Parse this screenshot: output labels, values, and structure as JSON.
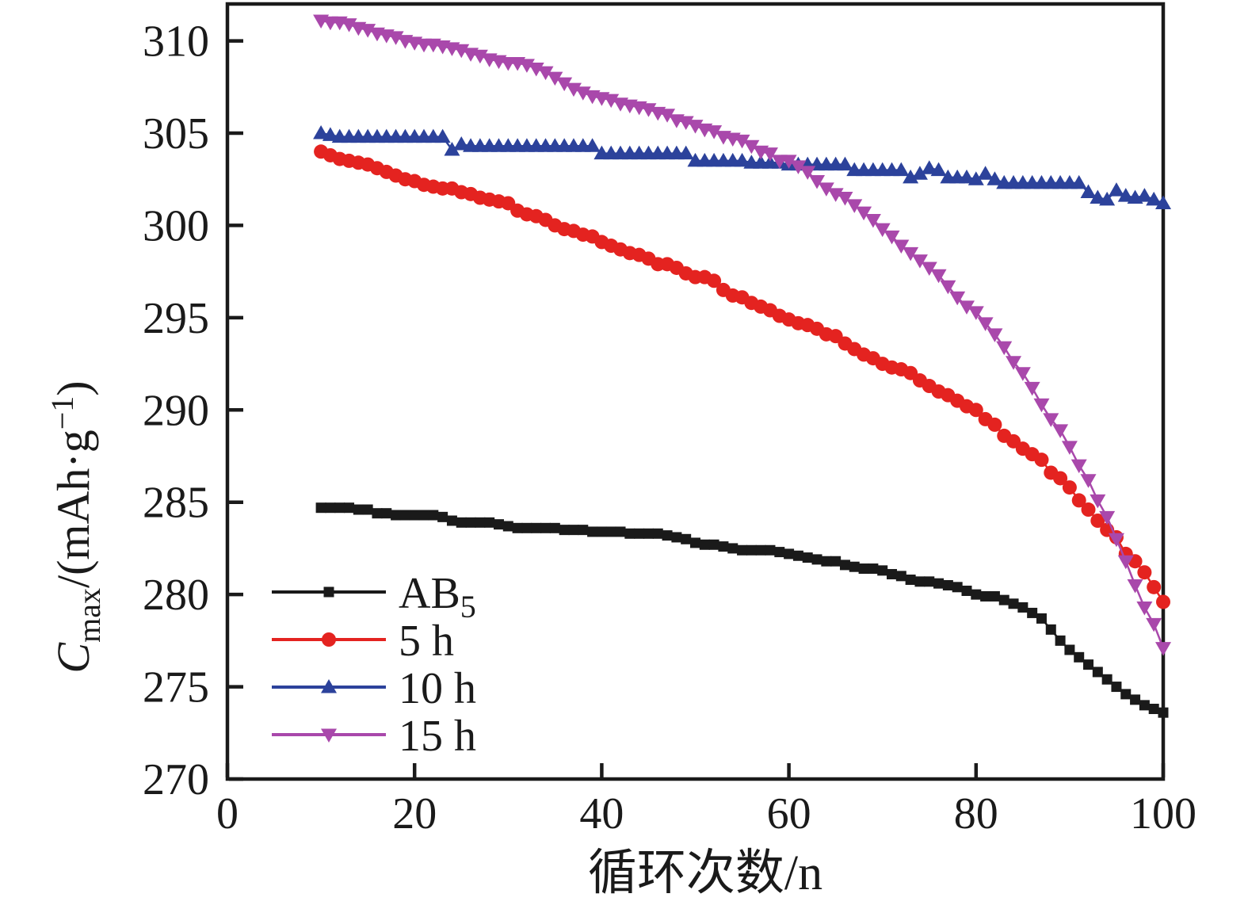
{
  "figure": {
    "background": "#ffffff",
    "axis_color": "#1a1a1a"
  },
  "chart_data": {
    "type": "line",
    "title": "",
    "xlabel": "循环次数/n",
    "ylabel_plain": "Cmax/(mAh·g−1)",
    "ylabel_parts": [
      {
        "t": "C",
        "style": "italic"
      },
      {
        "t": "max",
        "style": "sub"
      },
      {
        "t": "/(mAh·g",
        "style": "normal"
      },
      {
        "t": "−1",
        "style": "sup"
      },
      {
        "t": ")",
        "style": "normal"
      }
    ],
    "xlim": [
      0,
      100
    ],
    "ylim": [
      270,
      312
    ],
    "x_ticks": [
      0,
      20,
      40,
      60,
      80,
      100
    ],
    "y_ticks": [
      270,
      275,
      280,
      285,
      290,
      295,
      300,
      305,
      310
    ],
    "grid": false,
    "legend_position": "inside-lower-left",
    "x": [
      10,
      11,
      12,
      13,
      14,
      15,
      16,
      17,
      18,
      19,
      20,
      21,
      22,
      23,
      24,
      25,
      26,
      27,
      28,
      29,
      30,
      31,
      32,
      33,
      34,
      35,
      36,
      37,
      38,
      39,
      40,
      41,
      42,
      43,
      44,
      45,
      46,
      47,
      48,
      49,
      50,
      51,
      52,
      53,
      54,
      55,
      56,
      57,
      58,
      59,
      60,
      61,
      62,
      63,
      64,
      65,
      66,
      67,
      68,
      69,
      70,
      71,
      72,
      73,
      74,
      75,
      76,
      77,
      78,
      79,
      80,
      81,
      82,
      83,
      84,
      85,
      86,
      87,
      88,
      89,
      90,
      91,
      92,
      93,
      94,
      95,
      96,
      97,
      98,
      99,
      100
    ],
    "series": [
      {
        "name": "AB5",
        "label": "AB",
        "label_sub": "5",
        "color": "#1a1a1a",
        "marker": "square",
        "values": [
          284.7,
          284.7,
          284.7,
          284.7,
          284.6,
          284.6,
          284.4,
          284.4,
          284.3,
          284.3,
          284.3,
          284.3,
          284.3,
          284.2,
          284.0,
          283.9,
          283.9,
          283.9,
          283.9,
          283.8,
          283.7,
          283.6,
          283.6,
          283.6,
          283.6,
          283.6,
          283.5,
          283.5,
          283.5,
          283.4,
          283.4,
          283.4,
          283.4,
          283.3,
          283.3,
          283.3,
          283.3,
          283.2,
          283.1,
          283.0,
          282.8,
          282.7,
          282.7,
          282.6,
          282.5,
          282.4,
          282.4,
          282.4,
          282.4,
          282.3,
          282.2,
          282.1,
          282.0,
          281.9,
          281.8,
          281.8,
          281.6,
          281.5,
          281.4,
          281.4,
          281.3,
          281.1,
          281.0,
          280.8,
          280.7,
          280.7,
          280.6,
          280.5,
          280.4,
          280.2,
          280.0,
          279.9,
          279.9,
          279.7,
          279.5,
          279.3,
          279.0,
          278.7,
          278.1,
          277.5,
          277.0,
          276.6,
          276.2,
          275.8,
          275.4,
          275.0,
          274.6,
          274.3,
          274.0,
          273.8,
          273.6
        ]
      },
      {
        "name": "5 h",
        "label": "5 h",
        "label_sub": "",
        "color": "#e42320",
        "marker": "circle",
        "values": [
          304.0,
          303.8,
          303.6,
          303.5,
          303.4,
          303.3,
          303.1,
          302.9,
          302.7,
          302.5,
          302.4,
          302.2,
          302.1,
          302.0,
          302.0,
          301.8,
          301.7,
          301.5,
          301.4,
          301.3,
          301.2,
          300.8,
          300.6,
          300.5,
          300.3,
          300.0,
          299.8,
          299.7,
          299.5,
          299.4,
          299.1,
          298.9,
          298.7,
          298.5,
          298.4,
          298.2,
          297.9,
          297.9,
          297.7,
          297.4,
          297.2,
          297.2,
          297.0,
          296.5,
          296.2,
          296.1,
          295.8,
          295.6,
          295.4,
          295.1,
          294.9,
          294.7,
          294.6,
          294.4,
          294.1,
          294.0,
          293.6,
          293.3,
          293.0,
          292.8,
          292.5,
          292.3,
          292.2,
          292.0,
          291.6,
          291.3,
          291.0,
          290.8,
          290.5,
          290.2,
          290.0,
          289.5,
          289.2,
          288.6,
          288.3,
          287.9,
          287.6,
          287.3,
          286.6,
          286.3,
          285.8,
          285.1,
          284.6,
          284.0,
          283.5,
          283.1,
          282.2,
          281.8,
          281.2,
          280.4,
          279.6
        ]
      },
      {
        "name": "10 h",
        "label": "10 h",
        "label_sub": "",
        "color": "#2c429b",
        "marker": "triangle-up",
        "values": [
          305.0,
          304.9,
          304.8,
          304.8,
          304.8,
          304.8,
          304.8,
          304.8,
          304.8,
          304.8,
          304.8,
          304.8,
          304.8,
          304.8,
          304.1,
          304.4,
          304.3,
          304.3,
          304.3,
          304.3,
          304.3,
          304.3,
          304.3,
          304.3,
          304.3,
          304.3,
          304.3,
          304.3,
          304.3,
          304.3,
          303.9,
          303.9,
          303.9,
          303.9,
          303.9,
          303.9,
          303.9,
          303.9,
          303.9,
          303.9,
          303.5,
          303.5,
          303.5,
          303.5,
          303.5,
          303.5,
          303.4,
          303.4,
          303.4,
          303.4,
          303.3,
          303.3,
          303.3,
          303.3,
          303.3,
          303.3,
          303.3,
          303.0,
          303.0,
          303.0,
          303.0,
          303.0,
          303.0,
          302.6,
          302.8,
          303.1,
          303.0,
          302.6,
          302.6,
          302.6,
          302.5,
          302.8,
          302.5,
          302.3,
          302.3,
          302.3,
          302.3,
          302.3,
          302.3,
          302.3,
          302.3,
          302.3,
          301.8,
          301.5,
          301.4,
          301.9,
          301.6,
          301.5,
          301.6,
          301.4,
          301.2
        ]
      },
      {
        "name": "15 h",
        "label": "15 h",
        "label_sub": "",
        "color": "#a948ab",
        "marker": "triangle-down",
        "values": [
          311.1,
          311.0,
          311.0,
          310.9,
          310.7,
          310.6,
          310.4,
          310.3,
          310.2,
          310.0,
          309.9,
          309.8,
          309.8,
          309.7,
          309.6,
          309.5,
          309.3,
          309.2,
          309.0,
          308.9,
          308.8,
          308.8,
          308.7,
          308.5,
          308.3,
          308.0,
          307.7,
          307.4,
          307.2,
          307.0,
          306.9,
          306.8,
          306.6,
          306.5,
          306.4,
          306.3,
          306.1,
          306.0,
          305.7,
          305.6,
          305.4,
          305.2,
          305.1,
          304.8,
          304.7,
          304.6,
          304.3,
          304.0,
          303.9,
          303.5,
          303.5,
          303.2,
          302.9,
          302.4,
          302.0,
          301.7,
          301.5,
          301.1,
          300.7,
          300.3,
          299.8,
          299.4,
          298.9,
          298.5,
          298.1,
          297.7,
          297.3,
          296.7,
          296.1,
          295.6,
          295.3,
          294.7,
          294.1,
          293.4,
          292.6,
          292.0,
          291.2,
          290.3,
          289.5,
          288.9,
          288.0,
          287.0,
          286.2,
          285.1,
          284.2,
          283.0,
          281.8,
          280.5,
          279.3,
          278.4,
          277.1
        ]
      }
    ]
  }
}
